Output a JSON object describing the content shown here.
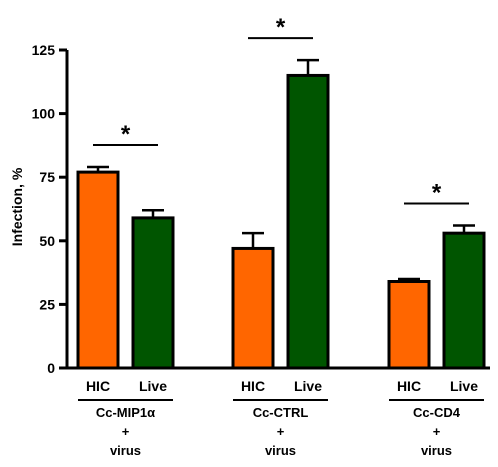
{
  "chart_data": {
    "type": "bar",
    "ylabel": "Infection, %",
    "ylim": [
      0,
      125
    ],
    "yticks": [
      0,
      25,
      50,
      75,
      100,
      125
    ],
    "groups": [
      {
        "label_lines": [
          "Cc-MIP1α",
          "+",
          "virus"
        ],
        "significance": "*",
        "bars": [
          {
            "label": "HIC",
            "value": 77,
            "error": 2,
            "color": "#ff6600"
          },
          {
            "label": "Live",
            "value": 59,
            "error": 3,
            "color": "#005500"
          }
        ]
      },
      {
        "label_lines": [
          "Cc-CTRL",
          "+",
          "virus"
        ],
        "significance": "*",
        "bars": [
          {
            "label": "HIC",
            "value": 47,
            "error": 6,
            "color": "#ff6600"
          },
          {
            "label": "Live",
            "value": 115,
            "error": 6,
            "color": "#005500"
          }
        ]
      },
      {
        "label_lines": [
          "Cc-CD4",
          "+",
          "virus"
        ],
        "significance": "*",
        "bars": [
          {
            "label": "HIC",
            "value": 34,
            "error": 1,
            "color": "#ff6600"
          },
          {
            "label": "Live",
            "value": 53,
            "error": 3,
            "color": "#005500"
          }
        ]
      }
    ]
  }
}
